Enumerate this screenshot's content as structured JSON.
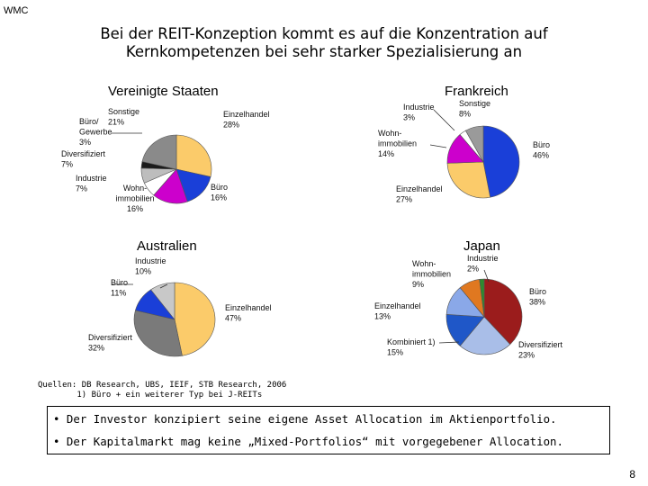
{
  "brand": "WMC",
  "title_line1": "Bei der REIT-Konzeption kommt es auf die Konzentration auf",
  "title_line2": "Kernkompetenzen bei sehr starker Spezialisierung an",
  "chart_data": [
    {
      "type": "pie",
      "title": "Vereinigte Staaten",
      "slices": [
        {
          "label": [
            "Einzelhandel",
            "28%"
          ],
          "value": 28,
          "color": "#FBCB6A"
        },
        {
          "label": [
            "Büro",
            "16%"
          ],
          "value": 16,
          "color": "#1A3FD8"
        },
        {
          "label": [
            "Wohn-",
            "immobilien",
            "16%"
          ],
          "value": 16,
          "color": "#CC00CC"
        },
        {
          "label": [
            "Industrie",
            "7%"
          ],
          "value": 7,
          "color": "#ffffff"
        },
        {
          "label": [
            "Diversifiziert",
            "7%"
          ],
          "value": 7,
          "color": "#BDBDBD"
        },
        {
          "label": [
            "Büro/",
            "Gewerbe",
            "3%"
          ],
          "value": 3,
          "color": "#1A1A1A"
        },
        {
          "label": [
            "Sonstige",
            "21%"
          ],
          "value": 21,
          "color": "#8A8A8A"
        }
      ]
    },
    {
      "type": "pie",
      "title": "Frankreich",
      "slices": [
        {
          "label": [
            "Büro",
            "46%"
          ],
          "value": 46,
          "color": "#1A3FD8"
        },
        {
          "label": [
            "Einzelhandel",
            "27%"
          ],
          "value": 27,
          "color": "#FBCB6A"
        },
        {
          "label": [
            "Wohn-",
            "immobilien",
            "14%"
          ],
          "value": 14,
          "color": "#CC00CC"
        },
        {
          "label": [
            "Industrie",
            "3%"
          ],
          "value": 3,
          "color": "#ffffff"
        },
        {
          "label": [
            "Sonstige",
            "8%"
          ],
          "value": 8,
          "color": "#9A9A9A"
        }
      ]
    },
    {
      "type": "pie",
      "title": "Australien",
      "slices": [
        {
          "label": [
            "Einzelhandel",
            "47%"
          ],
          "value": 47,
          "color": "#FBCB6A"
        },
        {
          "label": [
            "Diversifiziert",
            "32%"
          ],
          "value": 32,
          "color": "#7A7A7A"
        },
        {
          "label": [
            "Büro",
            "11%"
          ],
          "value": 11,
          "color": "#1A3FD8"
        },
        {
          "label": [
            "Industrie",
            "10%"
          ],
          "value": 10,
          "color": "#C8C8C8"
        }
      ]
    },
    {
      "type": "pie",
      "title": "Japan",
      "slices": [
        {
          "label": [
            "Büro",
            "38%"
          ],
          "value": 38,
          "color": "#9B1C1C"
        },
        {
          "label": [
            "Diversifiziert",
            "23%"
          ],
          "value": 23,
          "color": "#A9BEE8"
        },
        {
          "label": [
            "Kombiniert 1)",
            "15%"
          ],
          "value": 15,
          "color": "#1F57C8"
        },
        {
          "label": [
            "Einzelhandel",
            "13%"
          ],
          "value": 13,
          "color": "#8AA8E8"
        },
        {
          "label": [
            "Wohn-",
            "immobilien",
            "9%"
          ],
          "value": 9,
          "color": "#E07820"
        },
        {
          "label": [
            "Industrie",
            "2%"
          ],
          "value": 2,
          "color": "#2E8B2E"
        }
      ]
    }
  ],
  "sources_line1": "Quellen: DB Research, UBS, IEIF, STB Research, 2006",
  "sources_line2": "        1) Büro + ein weiterer Typ bei J-REITs",
  "bullet1": "• Der Investor konzipiert seine eigene Asset Allocation im Aktienportfolio.",
  "bullet2": "• Der Kapitalmarkt mag keine „Mixed-Portfolios“ mit vorgegebener Allocation.",
  "page_number": "8"
}
